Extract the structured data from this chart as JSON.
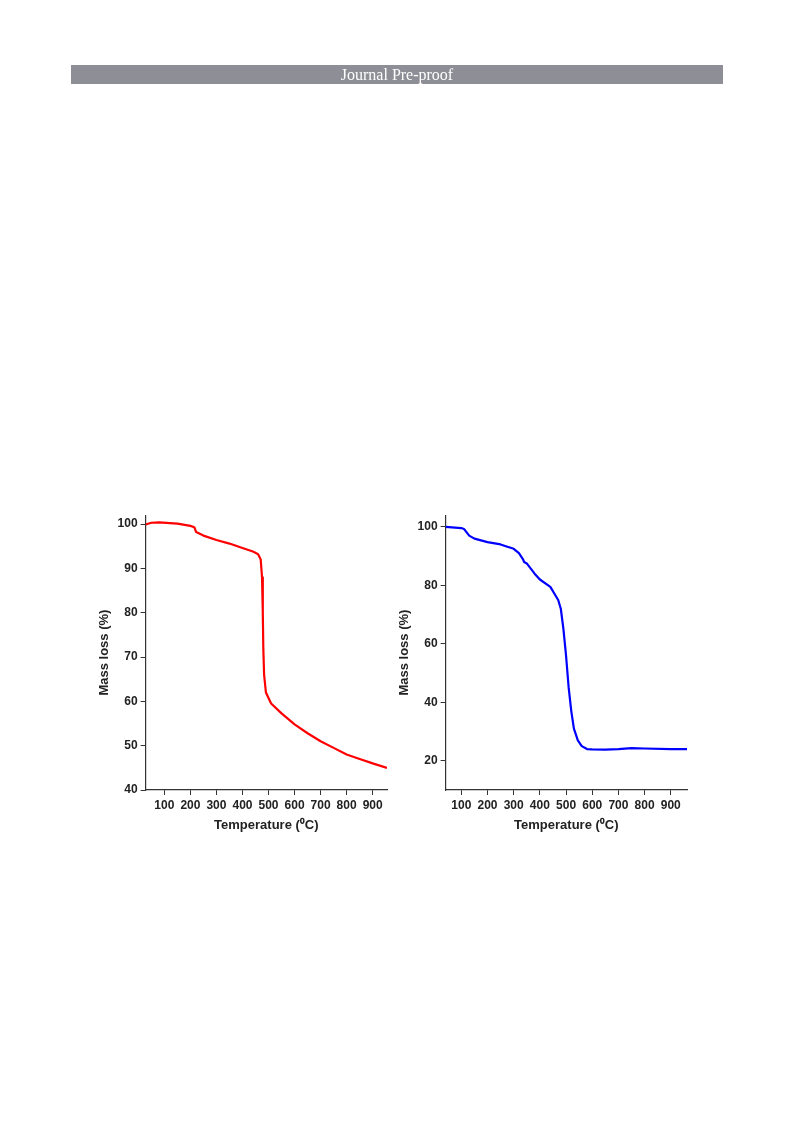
{
  "chart_data": [
    {
      "type": "line",
      "xlabel": "Temperature (⁰C)",
      "ylabel": "Mass loss (%)",
      "annotations": [
        "Journal Pre-proof"
      ],
      "series": [
        {
          "color": "#ff0000",
          "x": [
            28,
            50,
            80,
            150,
            200,
            215,
            220,
            222,
            250,
            300,
            350,
            400,
            440,
            460,
            470,
            475,
            478,
            480,
            483,
            490,
            510,
            550,
            600,
            650,
            700,
            750,
            800,
            850,
            900,
            955
          ],
          "values": [
            99.9,
            100.3,
            100.4,
            100.1,
            99.6,
            99.3,
            98.5,
            98.2,
            97.4,
            96.4,
            95.6,
            94.6,
            93.8,
            93.2,
            92.0,
            88,
            80,
            72,
            66,
            62,
            59.5,
            57.3,
            54.8,
            52.8,
            51.0,
            49.5,
            48.0,
            47.0,
            46.0,
            45.0
          ]
        }
      ],
      "xlim": [
        28,
        955
      ],
      "ylim": [
        40,
        102
      ],
      "xticks": [
        100,
        200,
        300,
        400,
        500,
        600,
        700,
        800,
        900
      ],
      "yticks": [
        40,
        50,
        60,
        70,
        80,
        90,
        100
      ],
      "grid": false,
      "legend": false,
      "marker": "none",
      "line_style": "solid"
    },
    {
      "type": "line",
      "xlabel": "Temperature (⁰C)",
      "ylabel": "Mass loss (%)",
      "series": [
        {
          "color": "#0000ff",
          "x": [
            40,
            100,
            110,
            130,
            150,
            200,
            250,
            300,
            320,
            335,
            340,
            350,
            380,
            400,
            440,
            470,
            480,
            490,
            500,
            510,
            520,
            530,
            545,
            560,
            580,
            600,
            650,
            700,
            750,
            800,
            900,
            962
          ],
          "values": [
            100,
            99.6,
            99.3,
            97,
            96,
            94.8,
            94,
            92.5,
            91,
            89,
            88,
            87.5,
            84,
            82,
            79.5,
            75,
            72,
            65,
            56,
            45,
            37,
            31,
            27,
            25,
            24,
            23.9,
            23.8,
            24,
            24.3,
            24.2,
            24,
            24.0
          ]
        }
      ],
      "xlim": [
        40,
        962
      ],
      "ylim": [
        10,
        104
      ],
      "xticks": [
        100,
        200,
        300,
        400,
        500,
        600,
        700,
        800,
        900
      ],
      "yticks": [
        20,
        40,
        60,
        80,
        100
      ],
      "grid": false,
      "legend": false,
      "marker": "none",
      "line_style": "solid"
    }
  ]
}
